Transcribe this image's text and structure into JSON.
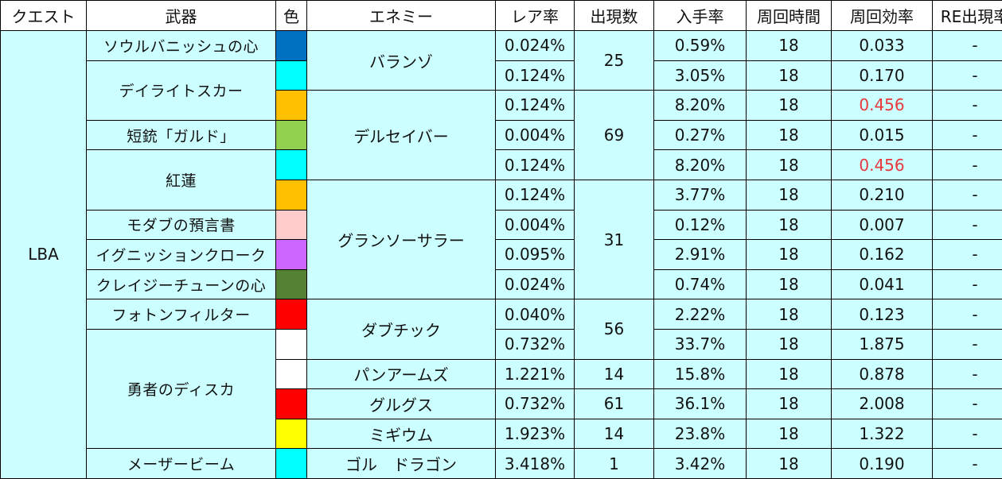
{
  "headers": [
    "クエスト",
    "武器",
    "色",
    "エネミー",
    "レア率",
    "出現数",
    "入手率",
    "周回時間",
    "周回効率",
    "RE出現率"
  ],
  "quest": "LBA",
  "weapons": [
    "ソウルバニッシュの心",
    "デイライトスカー",
    "短銃「ガルド」",
    "紅蓮",
    "モダブの預言書",
    "イグニッションクローク",
    "クレイジーチューンの心",
    "フォトンフィルター",
    "勇者のディスカ",
    "メーザービーム"
  ],
  "enemies": [
    {
      "name": "バランゾ",
      "count": "25"
    },
    {
      "name": "デルセイバー",
      "count": "69"
    },
    {
      "name": "グランソーサラー",
      "count": "31"
    },
    {
      "name": "ダブチック",
      "count": "56"
    },
    {
      "name": "パンアームズ",
      "count": "14"
    },
    {
      "name": "グルグス",
      "count": "61"
    },
    {
      "name": "ミギウム",
      "count": "14"
    },
    {
      "name": "ゴル　ドラゴン",
      "count": "1"
    }
  ],
  "colors": [
    "#0070c0",
    "#00ffff",
    "#ffc000",
    "#92d050",
    "#00ffff",
    "#ffc000",
    "#ffcccc",
    "#cc66ff",
    "#548235",
    "#ff0000",
    "#ffffff",
    "#ffffff",
    "#ff0000",
    "#ffff00",
    "#00ffff"
  ],
  "rows": [
    {
      "rare": "0.024%",
      "obtain": "0.59%",
      "time": "18",
      "eff": "0.033",
      "re": "-"
    },
    {
      "rare": "0.124%",
      "obtain": "3.05%",
      "time": "18",
      "eff": "0.170",
      "re": "-"
    },
    {
      "rare": "0.124%",
      "obtain": "8.20%",
      "time": "18",
      "eff": "0.456",
      "re": "-"
    },
    {
      "rare": "0.004%",
      "obtain": "0.27%",
      "time": "18",
      "eff": "0.015",
      "re": "-"
    },
    {
      "rare": "0.124%",
      "obtain": "8.20%",
      "time": "18",
      "eff": "0.456",
      "re": "-"
    },
    {
      "rare": "0.124%",
      "obtain": "3.77%",
      "time": "18",
      "eff": "0.210",
      "re": "-"
    },
    {
      "rare": "0.004%",
      "obtain": "0.12%",
      "time": "18",
      "eff": "0.007",
      "re": "-"
    },
    {
      "rare": "0.095%",
      "obtain": "2.91%",
      "time": "18",
      "eff": "0.162",
      "re": "-"
    },
    {
      "rare": "0.024%",
      "obtain": "0.74%",
      "time": "18",
      "eff": "0.041",
      "re": "-"
    },
    {
      "rare": "0.040%",
      "obtain": "2.22%",
      "time": "18",
      "eff": "0.123",
      "re": "-"
    },
    {
      "rare": "0.732%",
      "obtain": "33.7%",
      "time": "18",
      "eff": "1.875",
      "re": "-"
    },
    {
      "rare": "1.221%",
      "obtain": "15.8%",
      "time": "18",
      "eff": "0.878",
      "re": "-"
    },
    {
      "rare": "0.732%",
      "obtain": "36.1%",
      "time": "18",
      "eff": "2.008",
      "re": "-"
    },
    {
      "rare": "1.923%",
      "obtain": "23.8%",
      "time": "18",
      "eff": "1.322",
      "re": "-"
    },
    {
      "rare": "3.418%",
      "obtain": "3.42%",
      "time": "18",
      "eff": "0.190",
      "re": "-"
    }
  ],
  "highlight_color": "#e8383b"
}
